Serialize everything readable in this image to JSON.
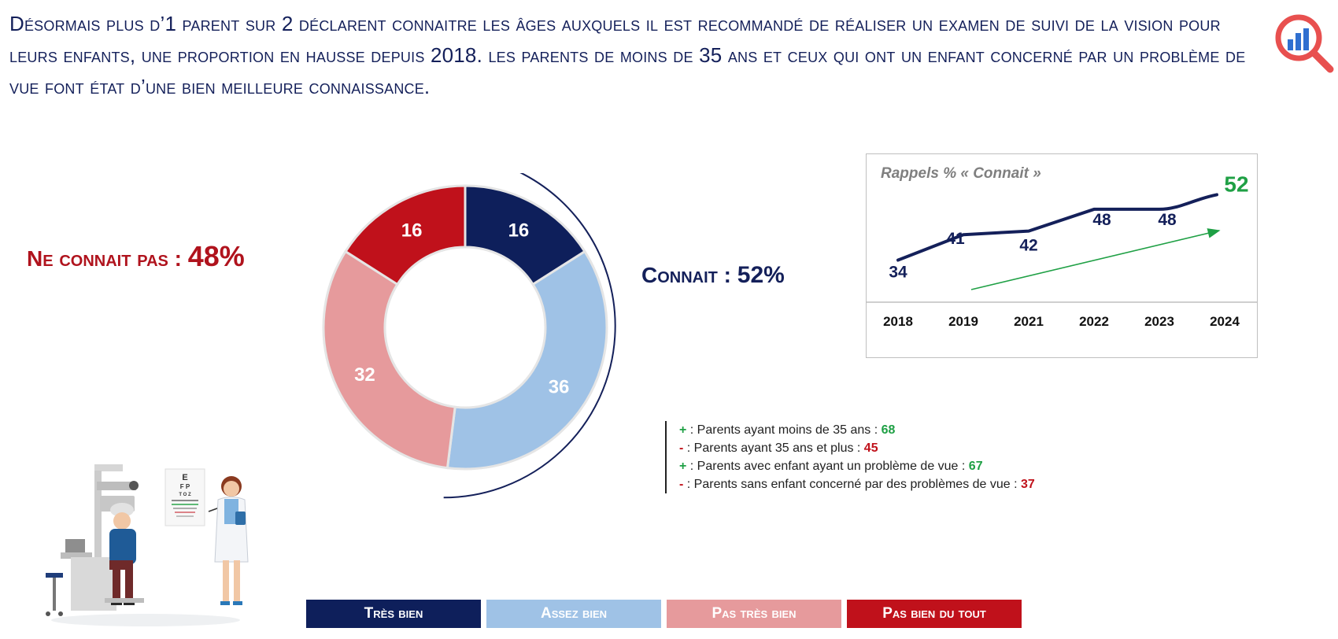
{
  "headline": "Désormais plus d’1 parent sur 2 déclarent connaitre les âges auxquels il est recommandé de réaliser un examen de suivi de la vision pour leurs enfants, une proportion en hausse depuis 2018. les parents de moins de 35 ans et ceux qui ont un enfant concerné par un problème de vue font état d’une bien meilleure connaissance.",
  "labels": {
    "negative_text": "Ne connait pas : ",
    "negative_value": "48%",
    "positive_text": "Connait : ",
    "positive_value": "52%"
  },
  "colors": {
    "tres_bien": "#0e1f5b",
    "assez_bien": "#9fc2e6",
    "pas_tres_bien": "#e69a9c",
    "pas_bien_du_tout": "#c0111b",
    "trend_line": "#14205a",
    "trend_highlight": "#1fa045"
  },
  "chart_data": [
    {
      "type": "pie",
      "variant": "donut",
      "title": "",
      "slices": [
        {
          "name": "Très bien",
          "value": 16,
          "color": "#0e1f5b"
        },
        {
          "name": "Assez bien",
          "value": 36,
          "color": "#9fc2e6"
        },
        {
          "name": "Pas très bien",
          "value": 32,
          "color": "#e69a9c"
        },
        {
          "name": "Pas bien du tout",
          "value": 16,
          "color": "#c0111b"
        }
      ],
      "legend": [
        "Très bien",
        "Assez bien",
        "Pas très bien",
        "Pas bien du tout"
      ],
      "legend_position": "bottom"
    },
    {
      "type": "line",
      "title": "Rappels % « Connait »",
      "x": [
        "2018",
        "2019",
        "2021",
        "2022",
        "2023",
        "2024"
      ],
      "series": [
        {
          "values": [
            34,
            41,
            42,
            48,
            48,
            52
          ]
        }
      ],
      "ylim": [
        30,
        56
      ],
      "grid": false
    }
  ],
  "subgroups": [
    {
      "sign": "+",
      "text": " : Parents ayant moins de 35 ans : ",
      "value": "68"
    },
    {
      "sign": "-",
      "text": " : Parents ayant 35 ans et plus : ",
      "value": "45"
    },
    {
      "sign": "+",
      "text": " : Parents avec enfant ayant un problème de vue : ",
      "value": "67"
    },
    {
      "sign": "-",
      "text": " : Parents sans enfant concerné par des problèmes de vue : ",
      "value": "37"
    }
  ],
  "eye_chart_letters": [
    "E",
    "F P",
    "T O Z"
  ]
}
